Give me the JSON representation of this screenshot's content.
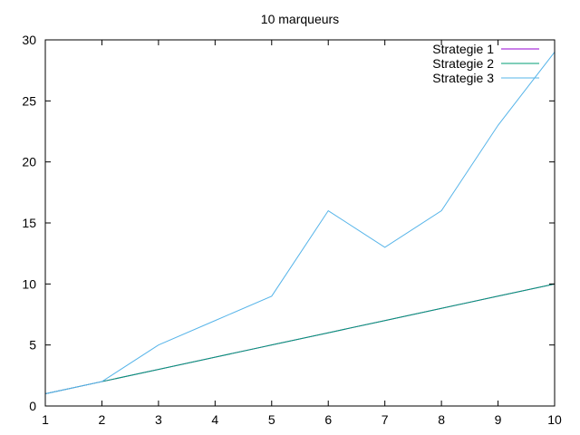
{
  "chart_data": {
    "type": "line",
    "title": "10 marqueurs",
    "xlabel": "",
    "ylabel": "",
    "xlim": [
      1,
      10
    ],
    "ylim": [
      0,
      30
    ],
    "x_ticks": [
      "1",
      "2",
      "3",
      "4",
      "5",
      "6",
      "7",
      "8",
      "9",
      "10"
    ],
    "y_ticks": [
      "0",
      "5",
      "10",
      "15",
      "20",
      "25",
      "30"
    ],
    "grid": false,
    "legend_position": "top-right",
    "x": [
      1,
      2,
      3,
      4,
      5,
      6,
      7,
      8,
      9,
      10
    ],
    "series": [
      {
        "name": "Strategie 1",
        "color": "#9400d3",
        "values": [
          1,
          2,
          3,
          4,
          5,
          6,
          7,
          8,
          9,
          10
        ]
      },
      {
        "name": "Strategie 2",
        "color": "#009e73",
        "values": [
          1,
          2,
          3,
          4,
          5,
          6,
          7,
          8,
          9,
          10
        ]
      },
      {
        "name": "Strategie 3",
        "color": "#56b4e9",
        "values": [
          1,
          2,
          5,
          7,
          9,
          16,
          13,
          16,
          23,
          29
        ]
      }
    ]
  }
}
